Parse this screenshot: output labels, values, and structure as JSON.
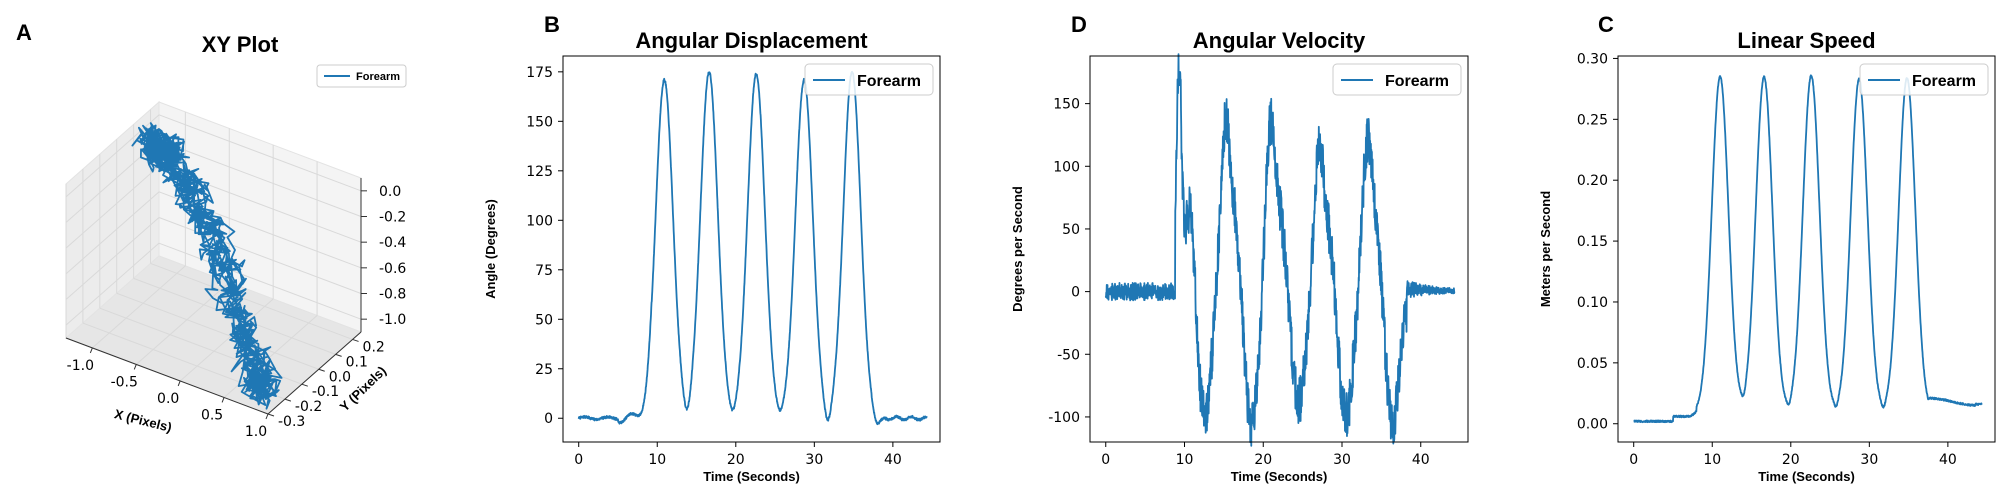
{
  "panels": {
    "A": "A",
    "B": "B",
    "C": "C",
    "D": "D"
  },
  "colors": {
    "line": "#1f77b4",
    "pane": "#f2f2f2",
    "grid": "#d9d9d9"
  },
  "chart_data": [
    {
      "panel": "A",
      "type": "line3d",
      "title": "XY Plot",
      "xlabel": "X (Pixels)",
      "ylabel": "Y (Pixels)",
      "zlabel": "",
      "legend": [
        "Forearm"
      ],
      "legend_loc": "top-right",
      "xlim": [
        -1.3,
        1.0
      ],
      "ylim": [
        -0.3,
        0.25
      ],
      "zlim": [
        -1.1,
        0.1
      ],
      "xticks": [
        "-1.0",
        "-0.5",
        "0.0",
        "0.5",
        "1.0"
      ],
      "yticks": [
        "-0.3",
        "-0.2",
        "-0.1",
        "0.0",
        "0.1",
        "0.2"
      ],
      "zticks": [
        "0.0",
        "-0.2",
        "-0.4",
        "-0.6",
        "-0.8",
        "-1.0"
      ],
      "series": [
        {
          "name": "Forearm",
          "kind": "dense oscillating 3D trace between (x≈-1.2, z≈0) and (x≈0.9, z≈-1.0)"
        }
      ]
    },
    {
      "panel": "B",
      "type": "line",
      "title": "Angular Displacement",
      "xlabel": "Time (Seconds)",
      "ylabel": "Angle (Degrees)",
      "xlim": [
        -2,
        46
      ],
      "ylim": [
        -12,
        183
      ],
      "xticks": [
        0,
        10,
        20,
        30,
        40
      ],
      "yticks": [
        0,
        25,
        50,
        75,
        100,
        125,
        150,
        175
      ],
      "legend": [
        "Forearm"
      ],
      "legend_loc": "top-right",
      "grid": false,
      "baseline": 0,
      "peaks": [
        {
          "t": 10.9,
          "v": 171
        },
        {
          "t": 16.6,
          "v": 175
        },
        {
          "t": 22.6,
          "v": 174
        },
        {
          "t": 28.7,
          "v": 171
        },
        {
          "t": 34.8,
          "v": 175
        }
      ],
      "troughs": [
        {
          "t": 13.8,
          "v": -7
        },
        {
          "t": 19.6,
          "v": -4
        },
        {
          "t": 25.6,
          "v": -3
        },
        {
          "t": 31.7,
          "v": -8
        },
        {
          "t": 37.9,
          "v": -5
        }
      ],
      "series": [
        {
          "name": "Forearm"
        }
      ]
    },
    {
      "panel": "D",
      "type": "line",
      "title": "Angular Velocity",
      "xlabel": "Time (Seconds)",
      "ylabel": "Degrees per Second",
      "xlim": [
        -2,
        46
      ],
      "ylim": [
        -120,
        188
      ],
      "xticks": [
        0,
        10,
        20,
        30,
        40
      ],
      "yticks": [
        -100,
        -50,
        0,
        50,
        100,
        150
      ],
      "legend": [
        "Forearm"
      ],
      "legend_loc": "top-right",
      "grid": false,
      "peaks": [
        {
          "t": 9.3,
          "v": 177
        },
        {
          "t": 15.2,
          "v": 132
        },
        {
          "t": 20.9,
          "v": 133
        },
        {
          "t": 27.1,
          "v": 112
        },
        {
          "t": 33.2,
          "v": 118
        }
      ],
      "troughs": [
        {
          "t": 12.5,
          "v": -100
        },
        {
          "t": 18.5,
          "v": -108
        },
        {
          "t": 24.5,
          "v": -88
        },
        {
          "t": 30.5,
          "v": -100
        },
        {
          "t": 36.4,
          "v": -104
        }
      ],
      "series": [
        {
          "name": "Forearm"
        }
      ]
    },
    {
      "panel": "C",
      "type": "line",
      "title": "Linear Speed",
      "xlabel": "Time (Seconds)",
      "ylabel": "Meters per Second",
      "xlim": [
        -2,
        46
      ],
      "ylim": [
        -0.015,
        0.302
      ],
      "xticks": [
        0,
        10,
        20,
        30,
        40
      ],
      "yticks": [
        0.0,
        0.05,
        0.1,
        0.15,
        0.2,
        0.25,
        0.3
      ],
      "ytick_labels": [
        "0.00",
        "0.05",
        "0.10",
        "0.15",
        "0.20",
        "0.25",
        "0.30"
      ],
      "legend": [
        "Forearm"
      ],
      "legend_loc": "top-right",
      "grid": false,
      "peaks": [
        {
          "t": 11.0,
          "v": 0.288
        },
        {
          "t": 16.6,
          "v": 0.288
        },
        {
          "t": 22.6,
          "v": 0.289
        },
        {
          "t": 28.7,
          "v": 0.286
        },
        {
          "t": 34.8,
          "v": 0.287
        }
      ],
      "troughs": [
        {
          "t": 14.0,
          "v": 0.013
        },
        {
          "t": 19.8,
          "v": 0.017
        },
        {
          "t": 25.8,
          "v": 0.018
        },
        {
          "t": 31.8,
          "v": 0.011
        }
      ],
      "series": [
        {
          "name": "Forearm"
        }
      ]
    }
  ]
}
